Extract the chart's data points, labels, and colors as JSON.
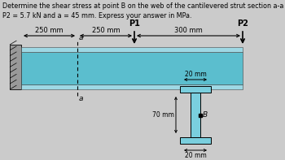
{
  "title_text": "Determine the shear stress at point B on the web of the cantilevered strut section a-a if P1 = 2.5 kN,\nP2 = 5.7 kN and a = 45 mm. Express your answer in MPa.",
  "title_fontsize": 5.8,
  "bg_color": "#cbcbcb",
  "beam_color_main": "#5bbece",
  "beam_color_light": "#9ed8e4",
  "wall_color": "#999999",
  "section_color_fill": "#7acfde",
  "dist_labels": [
    "250 mm",
    "250 mm",
    "300 mm"
  ],
  "P1_label": "P1",
  "P2_label": "P2",
  "a_label": "a",
  "web_height_label": "70 mm",
  "flange_width_label": "20 mm",
  "base_width_label": "20 mm",
  "B_label": "B"
}
